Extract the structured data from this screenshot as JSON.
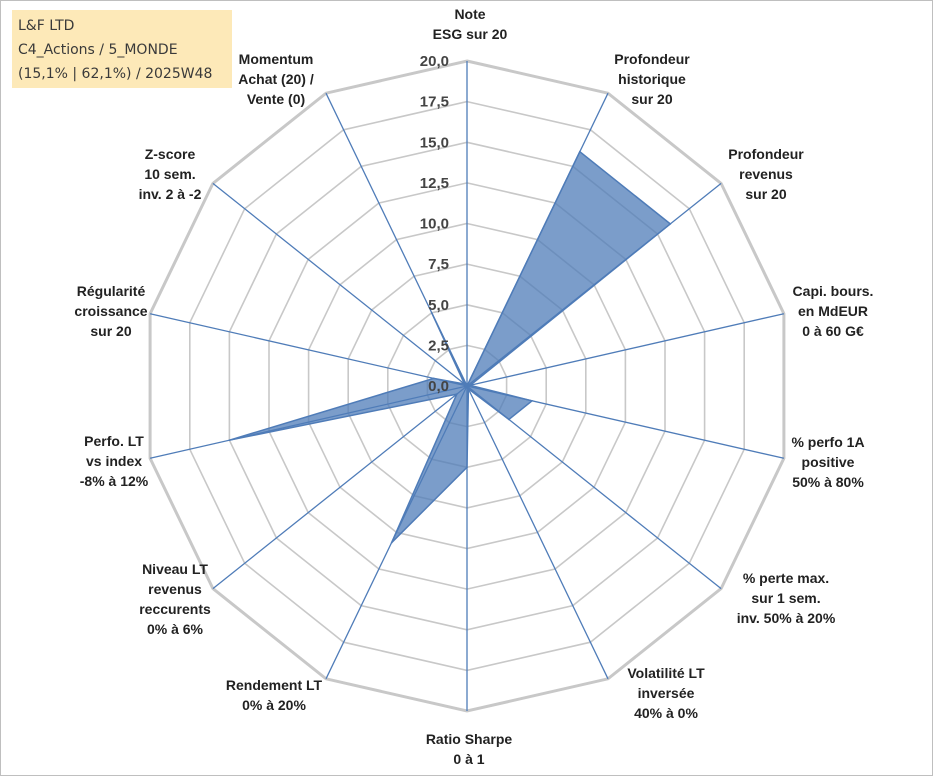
{
  "header": {
    "line1": "L&F LTD",
    "line2": "C4_Actions / 5_MONDE",
    "line3": "(15,1% | 62,1%) / 2025W48"
  },
  "colors": {
    "fill": "#4f7cb8",
    "grid": "#c8c8c8",
    "spoke": "#4f7cb8",
    "info_bg": "#fde9b8"
  },
  "chart_data": {
    "type": "radar",
    "rmax": 20,
    "ticks": [
      "0,0",
      "2,5",
      "5,0",
      "7,5",
      "10,0",
      "12,5",
      "15,0",
      "17,5",
      "20,0"
    ],
    "axes": [
      {
        "label": [
          "Note",
          "ESG sur 20"
        ],
        "value": 0
      },
      {
        "label": [
          "Profondeur",
          "historique",
          "sur 20"
        ],
        "value": 16
      },
      {
        "label": [
          "Profondeur",
          "revenus",
          "sur 20"
        ],
        "value": 16
      },
      {
        "label": [
          "Capi. bours.",
          "en MdEUR",
          "0 à 60 G€"
        ],
        "value": 0.2
      },
      {
        "label": [
          "% perfo 1A",
          "positive",
          "50% à 80%"
        ],
        "value": 4.1
      },
      {
        "label": [
          "% perte max.",
          "sur 1 sem.",
          "inv. 50% à 20%"
        ],
        "value": 3.3
      },
      {
        "label": [
          "Volatilité LT",
          "inversée",
          "40% à 0%"
        ],
        "value": 0.2
      },
      {
        "label": [
          "Ratio Sharpe",
          "0 à 1"
        ],
        "value": 5.0
      },
      {
        "label": [
          "Rendement LT",
          "0% à 20%"
        ],
        "value": 10.7
      },
      {
        "label": [
          "Niveau LT",
          "revenus",
          "reccurents",
          "0% à 6%"
        ],
        "value": 0.8
      },
      {
        "label": [
          "Perfo. LT",
          "vs index",
          "-8% à 12%"
        ],
        "value": 15.0
      },
      {
        "label": [
          "Régularité",
          "croissance",
          "sur 20"
        ],
        "value": 2.1
      },
      {
        "label": [
          "Z-score",
          "10 sem.",
          "inv. 2 à -2"
        ],
        "value": 0.2
      },
      {
        "label": [
          "Momentum",
          "Achat (20) /",
          "Vente (0)"
        ],
        "value": 5.0
      }
    ]
  }
}
